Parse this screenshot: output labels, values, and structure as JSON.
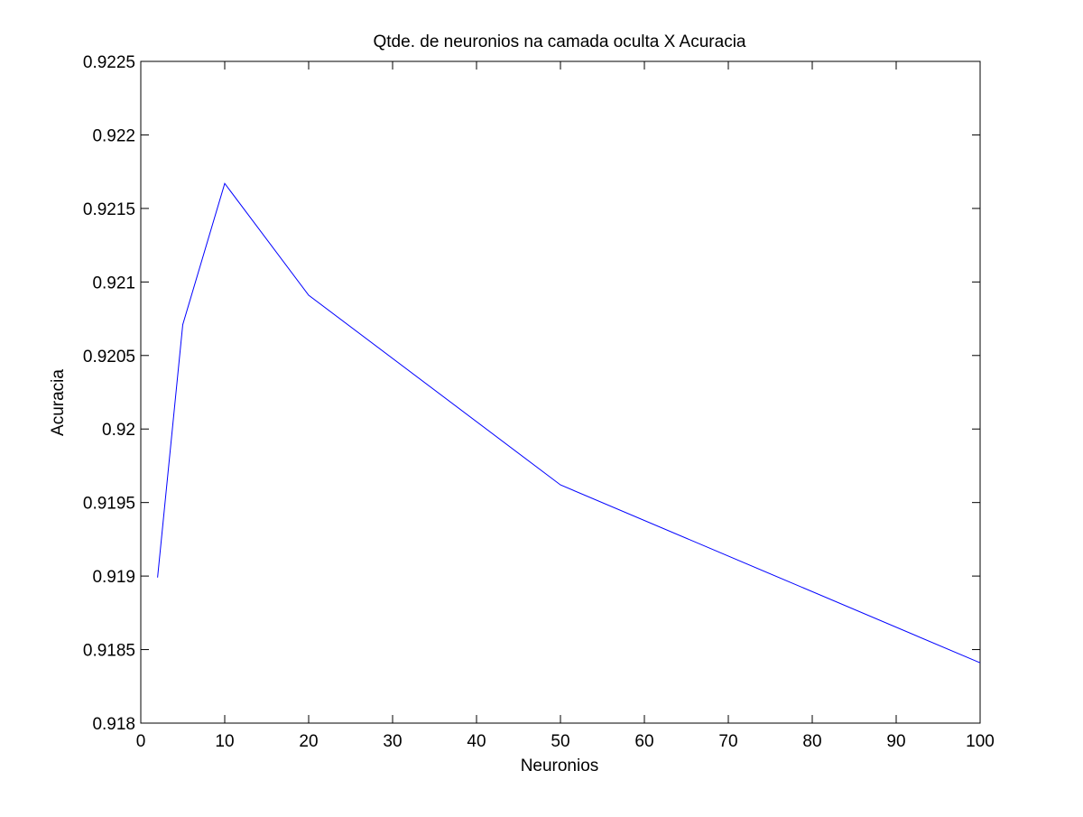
{
  "chart_data": {
    "type": "line",
    "title": "Qtde. de neuronios na camada oculta X Acuracia",
    "xlabel": "Neuronios",
    "ylabel": "Acuracia",
    "xlim": [
      0,
      100
    ],
    "ylim": [
      0.918,
      0.9225
    ],
    "xticks": [
      0,
      10,
      20,
      30,
      40,
      50,
      60,
      70,
      80,
      90,
      100
    ],
    "xtick_labels": [
      "0",
      "10",
      "20",
      "30",
      "40",
      "50",
      "60",
      "70",
      "80",
      "90",
      "100"
    ],
    "yticks": [
      0.918,
      0.9185,
      0.919,
      0.9195,
      0.92,
      0.9205,
      0.921,
      0.9215,
      0.922,
      0.9225
    ],
    "ytick_labels": [
      "0.918",
      "0.9185",
      "0.919",
      "0.9195",
      "0.92",
      "0.9205",
      "0.921",
      "0.9215",
      "0.922",
      "0.9225"
    ],
    "grid": false,
    "series": [
      {
        "color": "#0000ff",
        "x": [
          2,
          5,
          10,
          20,
          50,
          100
        ],
        "y": [
          0.91899,
          0.92071,
          0.92167,
          0.92091,
          0.91962,
          0.91841
        ]
      }
    ]
  }
}
